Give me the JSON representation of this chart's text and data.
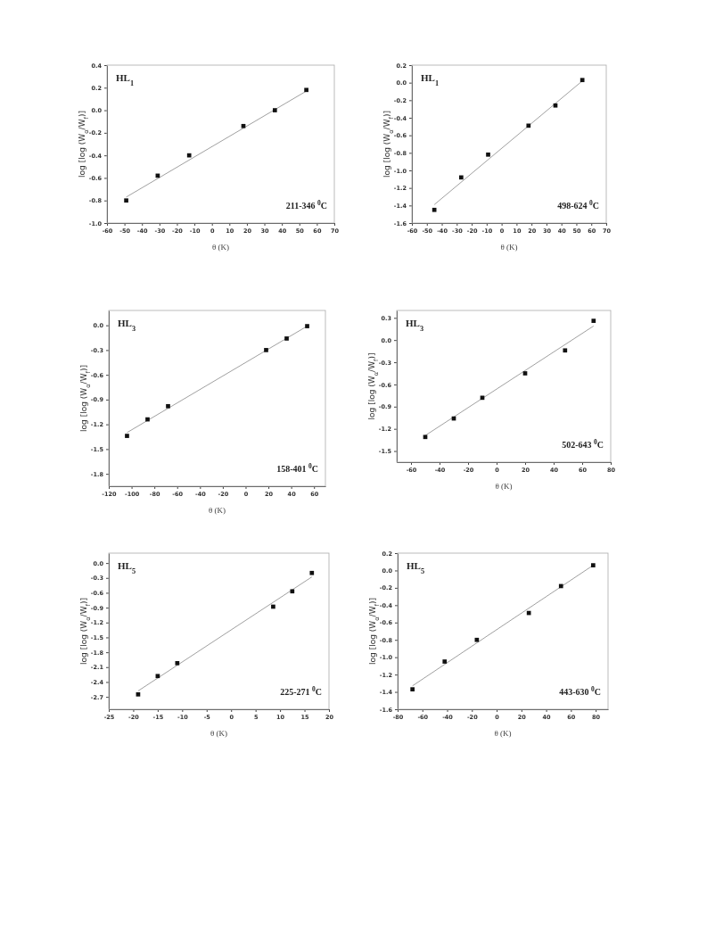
{
  "chart_data": [
    {
      "type": "scatter",
      "xlabel": "θ (K)",
      "ylabel": "log [log (W$_{α}$/W$_{f}$)]",
      "annotations": [
        "HL$_{1}$",
        "211-346 $^{0}$C"
      ],
      "xlim": [
        -60,
        70
      ],
      "xticks": [
        -60,
        -50,
        -40,
        -30,
        -20,
        -10,
        0,
        10,
        20,
        30,
        40,
        50,
        60,
        70
      ],
      "ylim": [
        -1.0,
        0.4
      ],
      "yticks": [
        {
          "value": -1.0,
          "label": "-1.0"
        },
        {
          "value": -0.8,
          "label": "-0.8"
        },
        {
          "value": -0.6,
          "label": "-0.6"
        },
        {
          "value": -0.4,
          "label": "-0.4"
        },
        {
          "value": -0.2,
          "label": "-0.2"
        },
        {
          "value": 0,
          "label": "0.0"
        },
        {
          "value": 0.2,
          "label": "0.2"
        },
        {
          "value": 0.4,
          "label": "0.4"
        }
      ],
      "series": [
        {
          "marker": "square",
          "color": "#111111",
          "x": [
            -49,
            -31,
            -13,
            18,
            36,
            54
          ],
          "values": [
            -0.8,
            -0.58,
            -0.4,
            -0.14,
            0.0,
            0.18
          ]
        },
        {
          "type": "line",
          "color": "#888888",
          "x": [
            -49,
            54
          ],
          "values": [
            -0.77,
            0.17
          ]
        }
      ]
    },
    {
      "type": "scatter",
      "xlabel": "θ (K)",
      "ylabel": "log [log (W$_{α}$/W$_{f}$)]",
      "annotations": [
        "HL$_{1}$",
        "498-624 $^{0}$C"
      ],
      "xlim": [
        -60,
        70
      ],
      "xticks": [
        -60,
        -50,
        -40,
        -30,
        -20,
        -10,
        0,
        10,
        20,
        30,
        40,
        50,
        60,
        70
      ],
      "ylim": [
        -1.6,
        0.2
      ],
      "yticks": [
        {
          "value": -1.6,
          "label": "-1.6"
        },
        {
          "value": -1.4,
          "label": "-1.4"
        },
        {
          "value": -1.2,
          "label": "-1.2"
        },
        {
          "value": -1.0,
          "label": "-1.0"
        },
        {
          "value": -0.8,
          "label": "-0.8"
        },
        {
          "value": -0.6,
          "label": "-0.6"
        },
        {
          "value": -0.4,
          "label": "-0.4"
        },
        {
          "value": -0.2,
          "label": "-0.2"
        },
        {
          "value": 0,
          "label": "0.0"
        },
        {
          "value": 0.2,
          "label": "0.2"
        }
      ],
      "series": [
        {
          "marker": "square",
          "color": "#111111",
          "x": [
            -45,
            -27,
            -9,
            18,
            36,
            54
          ],
          "values": [
            -1.45,
            -1.08,
            -0.82,
            -0.49,
            -0.26,
            0.03
          ]
        },
        {
          "type": "line",
          "color": "#888888",
          "x": [
            -45,
            54
          ],
          "values": [
            -1.39,
            0.02
          ]
        }
      ]
    },
    {
      "type": "scatter",
      "xlabel": "θ (K)",
      "ylabel": "log [log (W$_{α}$/W$_{f}$)]",
      "annotations": [
        "HL$_{3}$",
        "158-401 $^{0}$C"
      ],
      "xlim": [
        -120,
        70
      ],
      "xticks": [
        -120,
        -100,
        -80,
        -60,
        -40,
        -20,
        0,
        20,
        40,
        60
      ],
      "ylim": [
        -1.95,
        0.18
      ],
      "yticks": [
        {
          "value": -1.8,
          "label": "-1.8"
        },
        {
          "value": -1.5,
          "label": "-1.5"
        },
        {
          "value": -1.2,
          "label": "-1.2"
        },
        {
          "value": -0.9,
          "label": "-0.9"
        },
        {
          "value": -0.6,
          "label": "-0.6"
        },
        {
          "value": -0.3,
          "label": "-0.3"
        },
        {
          "value": 0,
          "label": "0.0"
        }
      ],
      "series": [
        {
          "marker": "square",
          "color": "#111111",
          "x": [
            -104,
            -86,
            -68,
            18,
            36,
            54
          ],
          "values": [
            -1.34,
            -1.14,
            -0.98,
            -0.3,
            -0.16,
            -0.01
          ]
        },
        {
          "type": "line",
          "color": "#888888",
          "x": [
            -104,
            54
          ],
          "values": [
            -1.3,
            -0.01
          ]
        }
      ]
    },
    {
      "type": "scatter",
      "xlabel": "θ (K)",
      "ylabel": "log [log (W$_{α}$/W$_{f}$)]",
      "annotations": [
        "HL$_{3}$",
        "502-643 $^{0}$C"
      ],
      "xlim": [
        -70,
        80
      ],
      "xticks": [
        -60,
        -40,
        -20,
        0,
        20,
        40,
        60,
        80
      ],
      "ylim": [
        -1.65,
        0.4
      ],
      "yticks": [
        {
          "value": -1.5,
          "label": "-1.5"
        },
        {
          "value": -1.2,
          "label": "-1.2"
        },
        {
          "value": -0.9,
          "label": "-0.9"
        },
        {
          "value": -0.6,
          "label": "-0.6"
        },
        {
          "value": -0.3,
          "label": "-0.3"
        },
        {
          "value": 0,
          "label": "0.0"
        },
        {
          "value": 0.3,
          "label": "0.3"
        }
      ],
      "series": [
        {
          "marker": "square",
          "color": "#111111",
          "x": [
            -50,
            -30,
            -10,
            20,
            48,
            68
          ],
          "values": [
            -1.31,
            -1.06,
            -0.78,
            -0.45,
            -0.14,
            0.26
          ]
        },
        {
          "type": "line",
          "color": "#888888",
          "x": [
            -50,
            68
          ],
          "values": [
            -1.29,
            0.19
          ]
        }
      ]
    },
    {
      "type": "scatter",
      "xlabel": "θ (K)",
      "ylabel": "log [log (W$_{α}$/W$_{f}$)]",
      "annotations": [
        "HL$_{5}$",
        "225-271 $^{0}$C"
      ],
      "xlim": [
        -25,
        20
      ],
      "xticks": [
        -25,
        -20,
        -15,
        -10,
        -5,
        0,
        5,
        10,
        15,
        20
      ],
      "ylim": [
        -2.95,
        0.2
      ],
      "yticks": [
        {
          "value": -2.7,
          "label": "-2.7"
        },
        {
          "value": -2.4,
          "label": "-2.4"
        },
        {
          "value": -2.1,
          "label": "-2.1"
        },
        {
          "value": -1.8,
          "label": "-1.8"
        },
        {
          "value": -1.5,
          "label": "-1.5"
        },
        {
          "value": -1.2,
          "label": "-1.2"
        },
        {
          "value": -0.9,
          "label": "-0.9"
        },
        {
          "value": -0.6,
          "label": "-0.6"
        },
        {
          "value": -0.3,
          "label": "-0.3"
        },
        {
          "value": 0,
          "label": "0.0"
        }
      ],
      "series": [
        {
          "marker": "square",
          "color": "#111111",
          "x": [
            -19,
            -15,
            -11,
            8.6,
            12.5,
            16.5
          ],
          "values": [
            -2.65,
            -2.28,
            -2.02,
            -0.88,
            -0.57,
            -0.2
          ]
        },
        {
          "type": "line",
          "color": "#888888",
          "x": [
            -19,
            16.5
          ],
          "values": [
            -2.58,
            -0.28
          ]
        }
      ]
    },
    {
      "type": "scatter",
      "xlabel": "θ (K)",
      "ylabel": "log [log (W$_{α}$/W$_{f}$)]",
      "annotations": [
        "HL$_{5}$",
        "443-630 $^{0}$C"
      ],
      "xlim": [
        -80,
        90
      ],
      "xticks": [
        -80,
        -60,
        -40,
        -20,
        0,
        20,
        40,
        60,
        80
      ],
      "ylim": [
        -1.6,
        0.2
      ],
      "yticks": [
        {
          "value": -1.6,
          "label": "-1.6"
        },
        {
          "value": -1.4,
          "label": "-1.4"
        },
        {
          "value": -1.2,
          "label": "-1.2"
        },
        {
          "value": -1.0,
          "label": "-1.0"
        },
        {
          "value": -0.8,
          "label": "-0.8"
        },
        {
          "value": -0.6,
          "label": "-0.6"
        },
        {
          "value": -0.4,
          "label": "-0.4"
        },
        {
          "value": -0.2,
          "label": "-0.2"
        },
        {
          "value": 0,
          "label": "0.0"
        },
        {
          "value": 0.2,
          "label": "0.2"
        }
      ],
      "series": [
        {
          "marker": "square",
          "color": "#111111",
          "x": [
            -68,
            -42,
            -16,
            26,
            52,
            78
          ],
          "values": [
            -1.37,
            -1.05,
            -0.8,
            -0.49,
            -0.18,
            0.06
          ]
        },
        {
          "type": "line",
          "color": "#888888",
          "x": [
            -68,
            78
          ],
          "values": [
            -1.33,
            0.06
          ]
        }
      ]
    }
  ]
}
